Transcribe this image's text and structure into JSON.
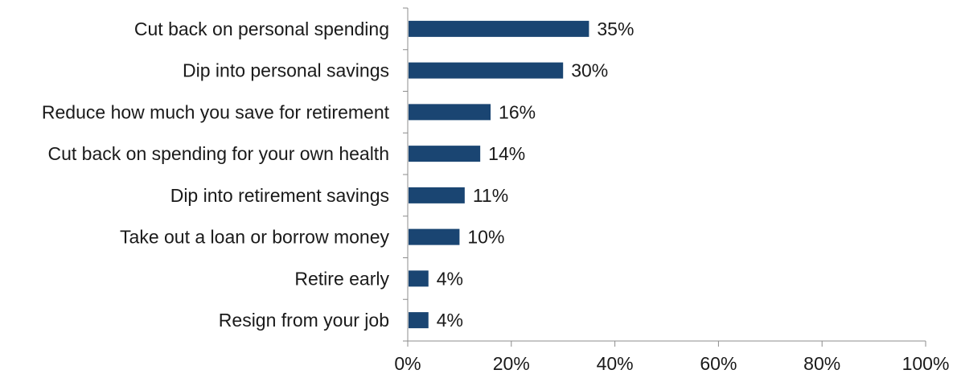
{
  "chart_data": {
    "type": "bar",
    "orientation": "horizontal",
    "categories": [
      "Cut back on personal spending",
      "Dip into personal savings",
      "Reduce how much you save for retirement",
      "Cut back on spending for your own health",
      "Dip into retirement savings",
      "Take out a loan or borrow money",
      "Retire early",
      "Resign from your job"
    ],
    "values": [
      35,
      30,
      16,
      14,
      11,
      10,
      4,
      4
    ],
    "data_labels": [
      "35%",
      "30%",
      "16%",
      "14%",
      "11%",
      "10%",
      "4%",
      "4%"
    ],
    "xlim": [
      0,
      100
    ],
    "xticks": [
      0,
      20,
      40,
      60,
      80,
      100
    ],
    "xtick_labels": [
      "0%",
      "20%",
      "40%",
      "60%",
      "80%",
      "100%"
    ],
    "title": "",
    "xlabel": "",
    "ylabel": "",
    "grid": false,
    "legend": "none",
    "bar_color": "#1a4572"
  }
}
